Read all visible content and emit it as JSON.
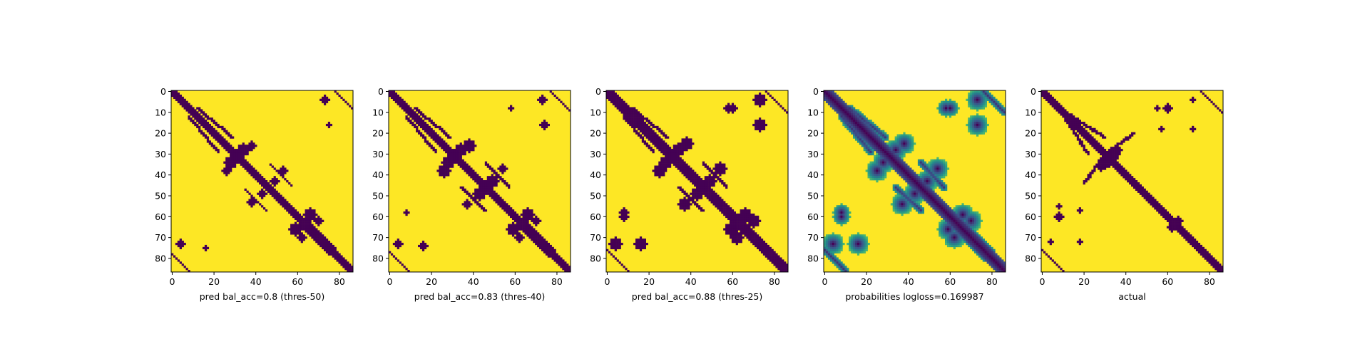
{
  "chart_data": [
    {
      "type": "heatmap",
      "panel": "pred-50",
      "xlabel": "pred bal_acc=0.8 (thres-50)",
      "ylabel": "",
      "title": "",
      "n": 87,
      "colormap": "viridis-binary",
      "xticks": [
        0,
        20,
        40,
        60,
        80
      ],
      "yticks": [
        0,
        10,
        20,
        30,
        40,
        50,
        60,
        70,
        80
      ],
      "xlim": [
        0,
        86
      ],
      "ylim": [
        86,
        0
      ],
      "diagonal_halfwidth": 2,
      "blobs": [
        [
          34,
          28,
          3
        ],
        [
          28,
          34,
          3
        ],
        [
          38,
          26,
          2
        ],
        [
          26,
          38,
          2
        ],
        [
          49,
          43,
          2
        ],
        [
          43,
          49,
          2
        ],
        [
          53,
          38,
          2
        ],
        [
          38,
          53,
          2
        ],
        [
          66,
          59,
          3
        ],
        [
          59,
          66,
          3
        ],
        [
          70,
          62,
          2
        ],
        [
          62,
          70,
          2
        ],
        [
          75,
          16,
          1
        ],
        [
          16,
          75,
          1
        ],
        [
          4,
          73,
          2
        ],
        [
          73,
          4,
          2
        ]
      ],
      "lines": [
        [
          8,
          12,
          22,
          29
        ],
        [
          12,
          8,
          29,
          22
        ],
        [
          47,
          35,
          57,
          45
        ],
        [
          35,
          47,
          45,
          57
        ],
        [
          62,
          65,
          75,
          78
        ],
        [
          65,
          62,
          78,
          75
        ],
        [
          78,
          0,
          86,
          8
        ],
        [
          0,
          78,
          8,
          86
        ]
      ]
    },
    {
      "type": "heatmap",
      "panel": "pred-40",
      "xlabel": "pred bal_acc=0.83 (thres-40)",
      "ylabel": "",
      "title": "",
      "n": 87,
      "colormap": "viridis-binary",
      "xticks": [
        0,
        20,
        40,
        60,
        80
      ],
      "yticks": [
        0,
        10,
        20,
        30,
        40,
        50,
        60,
        70,
        80
      ],
      "xlim": [
        0,
        86
      ],
      "ylim": [
        86,
        0
      ],
      "diagonal_halfwidth": 2,
      "blobs": [
        [
          34,
          28,
          3
        ],
        [
          28,
          34,
          3
        ],
        [
          38,
          26,
          3
        ],
        [
          26,
          38,
          3
        ],
        [
          49,
          43,
          3
        ],
        [
          43,
          49,
          3
        ],
        [
          54,
          37,
          2
        ],
        [
          37,
          54,
          2
        ],
        [
          66,
          59,
          3
        ],
        [
          59,
          66,
          3
        ],
        [
          70,
          62,
          2
        ],
        [
          62,
          70,
          2
        ],
        [
          74,
          16,
          2
        ],
        [
          16,
          74,
          2
        ],
        [
          4,
          73,
          2
        ],
        [
          73,
          4,
          2
        ],
        [
          8,
          58,
          1
        ],
        [
          58,
          8,
          1
        ]
      ],
      "lines": [
        [
          8,
          12,
          22,
          29
        ],
        [
          12,
          8,
          29,
          22
        ],
        [
          46,
          34,
          57,
          46
        ],
        [
          34,
          46,
          46,
          57
        ],
        [
          61,
          64,
          76,
          79
        ],
        [
          64,
          61,
          79,
          76
        ],
        [
          77,
          0,
          86,
          9
        ],
        [
          0,
          77,
          9,
          86
        ]
      ]
    },
    {
      "type": "heatmap",
      "panel": "pred-25",
      "xlabel": "pred bal_acc=0.88 (thres-25)",
      "ylabel": "",
      "title": "",
      "n": 87,
      "colormap": "viridis-binary",
      "xticks": [
        0,
        20,
        40,
        60,
        80
      ],
      "yticks": [
        0,
        10,
        20,
        30,
        40,
        50,
        60,
        70,
        80
      ],
      "xlim": [
        0,
        86
      ],
      "ylim": [
        86,
        0
      ],
      "diagonal_halfwidth": 3,
      "blobs": [
        [
          34,
          28,
          3
        ],
        [
          28,
          34,
          3
        ],
        [
          38,
          25,
          3
        ],
        [
          25,
          38,
          3
        ],
        [
          49,
          43,
          3
        ],
        [
          43,
          49,
          3
        ],
        [
          54,
          37,
          3
        ],
        [
          37,
          54,
          3
        ],
        [
          66,
          59,
          3
        ],
        [
          59,
          66,
          3
        ],
        [
          70,
          62,
          3
        ],
        [
          62,
          70,
          3
        ],
        [
          73,
          16,
          3
        ],
        [
          16,
          73,
          3
        ],
        [
          4,
          73,
          3
        ],
        [
          73,
          4,
          3
        ],
        [
          8,
          58,
          2
        ],
        [
          58,
          8,
          2
        ],
        [
          60,
          8,
          2
        ],
        [
          8,
          60,
          2
        ]
      ],
      "lines": [
        [
          8,
          12,
          22,
          29
        ],
        [
          12,
          8,
          29,
          22
        ],
        [
          46,
          34,
          57,
          46
        ],
        [
          34,
          46,
          46,
          57
        ],
        [
          61,
          64,
          77,
          80
        ],
        [
          64,
          61,
          80,
          77
        ],
        [
          76,
          0,
          86,
          10
        ],
        [
          0,
          76,
          10,
          86
        ]
      ]
    },
    {
      "type": "heatmap",
      "panel": "probabilities",
      "xlabel": "probabilities logloss=0.169987",
      "ylabel": "",
      "title": "",
      "n": 87,
      "colormap": "viridis-continuous",
      "xticks": [
        0,
        20,
        40,
        60,
        80
      ],
      "yticks": [
        0,
        10,
        20,
        30,
        40,
        50,
        60,
        70,
        80
      ],
      "xlim": [
        0,
        86
      ],
      "ylim": [
        86,
        0
      ],
      "diagonal_halfwidth": 4,
      "blobs": [
        [
          34,
          28,
          5
        ],
        [
          28,
          34,
          5
        ],
        [
          38,
          25,
          5
        ],
        [
          25,
          38,
          5
        ],
        [
          49,
          43,
          5
        ],
        [
          43,
          49,
          5
        ],
        [
          54,
          37,
          5
        ],
        [
          37,
          54,
          5
        ],
        [
          66,
          59,
          5
        ],
        [
          59,
          66,
          5
        ],
        [
          70,
          62,
          5
        ],
        [
          62,
          70,
          5
        ],
        [
          73,
          16,
          5
        ],
        [
          16,
          73,
          5
        ],
        [
          4,
          73,
          5
        ],
        [
          73,
          4,
          5
        ],
        [
          8,
          58,
          4
        ],
        [
          58,
          8,
          4
        ],
        [
          60,
          8,
          4
        ],
        [
          8,
          60,
          4
        ]
      ],
      "lines": [
        [
          8,
          12,
          22,
          29
        ],
        [
          12,
          8,
          29,
          22
        ],
        [
          46,
          34,
          57,
          46
        ],
        [
          34,
          46,
          46,
          57
        ],
        [
          61,
          64,
          77,
          80
        ],
        [
          64,
          61,
          80,
          77
        ],
        [
          76,
          0,
          86,
          10
        ],
        [
          0,
          76,
          10,
          86
        ]
      ]
    },
    {
      "type": "heatmap",
      "panel": "actual",
      "xlabel": "actual",
      "ylabel": "",
      "title": "",
      "n": 87,
      "colormap": "viridis-binary",
      "xticks": [
        0,
        20,
        40,
        60,
        80
      ],
      "yticks": [
        0,
        10,
        20,
        30,
        40,
        50,
        60,
        70,
        80
      ],
      "xlim": [
        0,
        86
      ],
      "ylim": [
        86,
        0
      ],
      "diagonal_halfwidth": 2,
      "blobs": [
        [
          34,
          30,
          3
        ],
        [
          30,
          34,
          3
        ],
        [
          36,
          28,
          2
        ],
        [
          28,
          36,
          2
        ],
        [
          18,
          57,
          1
        ],
        [
          57,
          18,
          1
        ],
        [
          8,
          60,
          2
        ],
        [
          60,
          8,
          2
        ],
        [
          55,
          8,
          1
        ],
        [
          8,
          55,
          1
        ],
        [
          72,
          18,
          1
        ],
        [
          18,
          72,
          1
        ],
        [
          4,
          72,
          1
        ],
        [
          72,
          4,
          1
        ],
        [
          65,
          62,
          2
        ],
        [
          62,
          65,
          2
        ]
      ],
      "lines": [
        [
          8,
          8,
          22,
          30
        ],
        [
          8,
          8,
          30,
          22
        ],
        [
          30,
          30,
          44,
          20
        ],
        [
          20,
          44,
          30,
          30
        ],
        [
          40,
          40,
          58,
          56
        ],
        [
          56,
          58,
          40,
          40
        ],
        [
          76,
          0,
          86,
          10
        ],
        [
          0,
          76,
          10,
          86
        ]
      ]
    }
  ],
  "colors": {
    "low": "#440154",
    "high": "#fde725",
    "mid": "#21918c"
  }
}
